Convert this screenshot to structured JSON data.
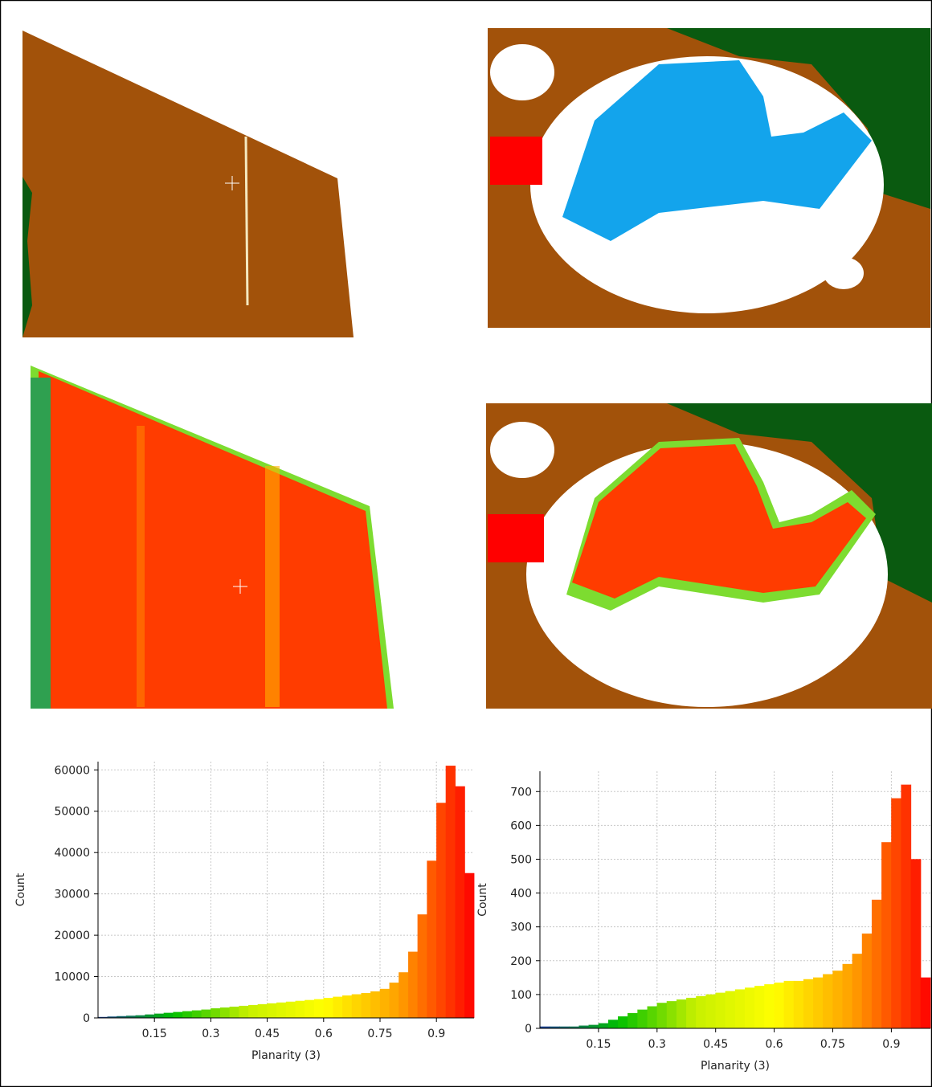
{
  "chart_data": [
    {
      "type": "histogram",
      "x_label": "Planarity (3)",
      "y_label": "Count",
      "bins": [
        0,
        0.025,
        0.05,
        0.075,
        0.1,
        0.125,
        0.15,
        0.175,
        0.2,
        0.225,
        0.25,
        0.275,
        0.3,
        0.325,
        0.35,
        0.375,
        0.4,
        0.425,
        0.45,
        0.475,
        0.5,
        0.525,
        0.55,
        0.575,
        0.6,
        0.625,
        0.65,
        0.675,
        0.7,
        0.725,
        0.75,
        0.775,
        0.8,
        0.825,
        0.85,
        0.875,
        0.9,
        0.925,
        0.95,
        0.975,
        1
      ],
      "values": [
        200,
        300,
        400,
        500,
        600,
        800,
        1000,
        1200,
        1400,
        1600,
        1800,
        2000,
        2300,
        2500,
        2700,
        2900,
        3100,
        3300,
        3500,
        3700,
        3900,
        4100,
        4300,
        4500,
        4800,
        5100,
        5400,
        5700,
        6000,
        6400,
        7000,
        8500,
        11000,
        16000,
        25000,
        38000,
        52000,
        61000,
        56000,
        35000
      ],
      "colormap": [
        "#1a3a9a",
        "#00c000",
        "#c8f000",
        "#ffff00",
        "#ffa000",
        "#ff0000"
      ],
      "xlim": [
        0,
        1
      ],
      "xticks": [
        0.15,
        0.3,
        0.45,
        0.6,
        0.75,
        0.9
      ],
      "ylim": [
        0,
        62000
      ],
      "yticks": [
        0,
        10000,
        20000,
        30000,
        40000,
        50000,
        60000
      ],
      "grid": true
    },
    {
      "type": "histogram",
      "x_label": "Planarity (3)",
      "y_label": "Count",
      "bins": [
        0,
        0.025,
        0.05,
        0.075,
        0.1,
        0.125,
        0.15,
        0.175,
        0.2,
        0.225,
        0.25,
        0.275,
        0.3,
        0.325,
        0.35,
        0.375,
        0.4,
        0.425,
        0.45,
        0.475,
        0.5,
        0.525,
        0.55,
        0.575,
        0.6,
        0.625,
        0.65,
        0.675,
        0.7,
        0.725,
        0.75,
        0.775,
        0.8,
        0.825,
        0.85,
        0.875,
        0.9,
        0.925,
        0.95,
        0.975,
        1
      ],
      "values": [
        5,
        5,
        5,
        5,
        8,
        10,
        15,
        25,
        35,
        45,
        55,
        65,
        75,
        80,
        85,
        90,
        95,
        100,
        105,
        110,
        115,
        120,
        125,
        130,
        135,
        140,
        140,
        145,
        150,
        160,
        170,
        190,
        220,
        280,
        380,
        550,
        680,
        720,
        500,
        150
      ],
      "colormap": [
        "#1a3a9a",
        "#00c000",
        "#c8f000",
        "#ffff00",
        "#ffa000",
        "#ff0000"
      ],
      "xlim": [
        0,
        1
      ],
      "xticks": [
        0.15,
        0.3,
        0.45,
        0.6,
        0.75,
        0.9
      ],
      "ylim": [
        0,
        760
      ],
      "yticks": [
        0,
        100,
        200,
        300,
        400,
        500,
        600,
        700
      ],
      "grid": true
    }
  ]
}
